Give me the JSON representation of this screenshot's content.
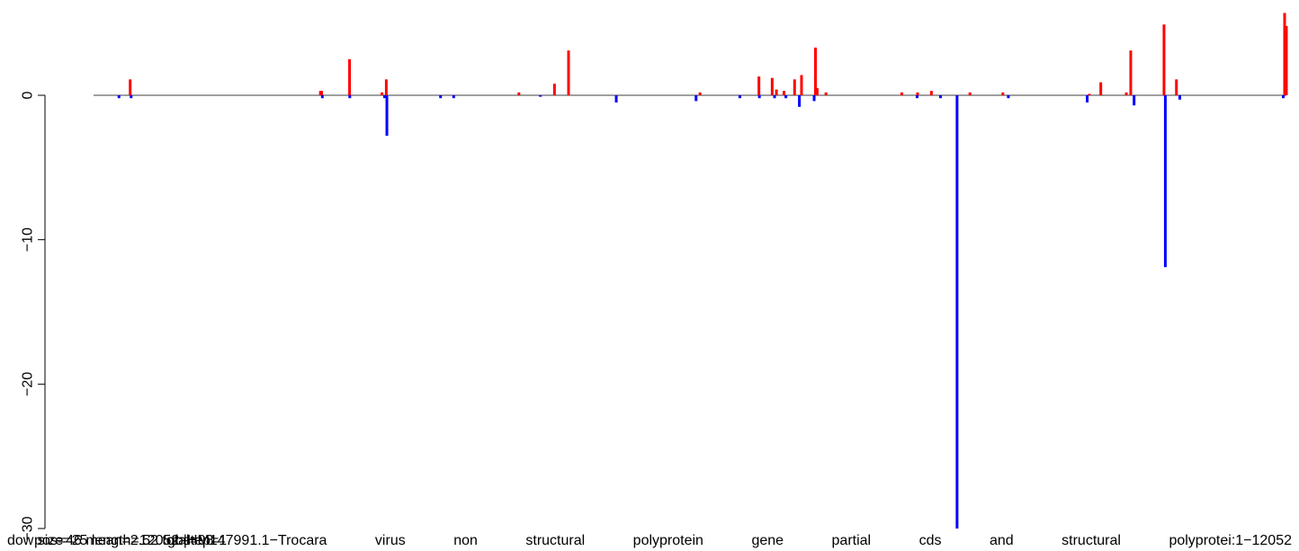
{
  "chart_data": {
    "type": "bar",
    "title": "",
    "xlabel": "",
    "ylabel": "",
    "ylim": [
      -30,
      5.7
    ],
    "xlim": [
      0,
      1000
    ],
    "y_ticks": [
      0,
      -10,
      -20,
      -30
    ],
    "y_tick_labels": [
      "0",
      "−10",
      "−20",
      "−30"
    ],
    "grid": false,
    "legend": "none",
    "baseline": 0,
    "positive_series": {
      "color": "#ff0000",
      "bars": [
        {
          "x": 30.7,
          "y": 1.1
        },
        {
          "x": 190.2,
          "y": 0.3
        },
        {
          "x": 191.2,
          "y": 0.3
        },
        {
          "x": 214.6,
          "y": 2.5
        },
        {
          "x": 241.8,
          "y": 0.2
        },
        {
          "x": 245.4,
          "y": 1.1
        },
        {
          "x": 356.6,
          "y": 0.2
        },
        {
          "x": 386.4,
          "y": 0.8
        },
        {
          "x": 398.2,
          "y": 3.1
        },
        {
          "x": 508.4,
          "y": 0.2
        },
        {
          "x": 557.8,
          "y": 1.3
        },
        {
          "x": 568.9,
          "y": 1.2
        },
        {
          "x": 572.5,
          "y": 0.4
        },
        {
          "x": 578.8,
          "y": 0.3
        },
        {
          "x": 587.7,
          "y": 1.1
        },
        {
          "x": 593.5,
          "y": 1.4
        },
        {
          "x": 605.2,
          "y": 3.3
        },
        {
          "x": 606.6,
          "y": 0.5
        },
        {
          "x": 614.0,
          "y": 0.2
        },
        {
          "x": 677.6,
          "y": 0.2
        },
        {
          "x": 690.8,
          "y": 0.2
        },
        {
          "x": 702.4,
          "y": 0.3
        },
        {
          "x": 734.7,
          "y": 0.2
        },
        {
          "x": 762.3,
          "y": 0.2
        },
        {
          "x": 834.8,
          "y": 0.1
        },
        {
          "x": 844.4,
          "y": 0.9
        },
        {
          "x": 865.8,
          "y": 0.2
        },
        {
          "x": 869.5,
          "y": 3.1
        },
        {
          "x": 897.4,
          "y": 4.9
        },
        {
          "x": 907.8,
          "y": 1.1
        },
        {
          "x": 998.5,
          "y": 5.7
        },
        {
          "x": 1000.0,
          "y": 4.8
        }
      ]
    },
    "negative_series": {
      "color": "#0000ff",
      "bars": [
        {
          "x": 21.3,
          "y": -0.2
        },
        {
          "x": 31.5,
          "y": -0.2
        },
        {
          "x": 191.8,
          "y": -0.2
        },
        {
          "x": 214.8,
          "y": -0.2
        },
        {
          "x": 244.0,
          "y": -0.2
        },
        {
          "x": 245.9,
          "y": -2.8
        },
        {
          "x": 290.9,
          "y": -0.2
        },
        {
          "x": 301.9,
          "y": -0.2
        },
        {
          "x": 374.6,
          "y": -0.1
        },
        {
          "x": 438.2,
          "y": -0.5
        },
        {
          "x": 505.1,
          "y": -0.4
        },
        {
          "x": 541.8,
          "y": -0.2
        },
        {
          "x": 558.2,
          "y": -0.2
        },
        {
          "x": 570.9,
          "y": -0.2
        },
        {
          "x": 580.4,
          "y": -0.2
        },
        {
          "x": 591.7,
          "y": -0.8
        },
        {
          "x": 604.1,
          "y": -0.4
        },
        {
          "x": 690.4,
          "y": -0.2
        },
        {
          "x": 710.0,
          "y": -0.2
        },
        {
          "x": 723.9,
          "y": -30.0
        },
        {
          "x": 766.9,
          "y": -0.2
        },
        {
          "x": 833.0,
          "y": -0.5
        },
        {
          "x": 872.3,
          "y": -0.7
        },
        {
          "x": 898.5,
          "y": -11.9
        },
        {
          "x": 910.6,
          "y": -0.3
        },
        {
          "x": 997.4,
          "y": -0.2
        }
      ]
    },
    "footer_text_layers": [
      "dow size=25 length=12052 step=1",
      "pos=46 mean=2.52 total=98",
      "gb|HM147991.1−Trocara virus non structural polyprotein gene partial cds and structural polyprotei:1−12052"
    ]
  }
}
